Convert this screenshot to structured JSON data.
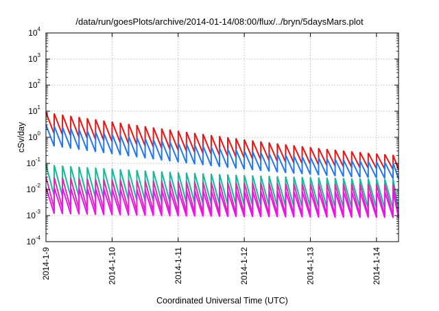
{
  "chart_data": {
    "type": "line",
    "title": "/data/run/goesPlots/archive/2014-01-14/08:00/flux/../bryn/5daysMars.plot",
    "xlabel": "Coordinated Universal Time (UTC)",
    "ylabel": "cSv/day",
    "yscale": "log",
    "ylim": [
      0.0001,
      10000
    ],
    "y_ticks": [
      {
        "base": "10",
        "exp": "-4",
        "value": 0.0001
      },
      {
        "base": "10",
        "exp": "-3",
        "value": 0.001
      },
      {
        "base": "10",
        "exp": "-2",
        "value": 0.01
      },
      {
        "base": "10",
        "exp": "-1",
        "value": 0.1
      },
      {
        "base": "10",
        "exp": "0",
        "value": 1
      },
      {
        "base": "10",
        "exp": "1",
        "value": 10
      },
      {
        "base": "10",
        "exp": "2",
        "value": 100
      },
      {
        "base": "10",
        "exp": "3",
        "value": 1000
      },
      {
        "base": "10",
        "exp": "4",
        "value": 10000
      }
    ],
    "x_domain": [
      "2014-01-09 00:00",
      "2014-01-14 08:00"
    ],
    "x_ticks": [
      {
        "label": "2014-1-9",
        "value": "2014-01-09"
      },
      {
        "label": "2014-1-10",
        "value": "2014-01-10"
      },
      {
        "label": "2014-1-11",
        "value": "2014-01-11"
      },
      {
        "label": "2014-1-12",
        "value": "2014-01-12"
      },
      {
        "label": "2014-1-13",
        "value": "2014-01-13"
      },
      {
        "label": "2014-1-14",
        "value": "2014-01-14"
      }
    ],
    "grid": true,
    "pattern": "sawtooth, approximately 8 cycles per day",
    "cycles_per_day": 8,
    "series": [
      {
        "color": "#ee1111",
        "peak_start": 9.0,
        "peak_end": 0.1,
        "trough_start": 1.5,
        "trough_end": 0.04,
        "decay_days": 1.2
      },
      {
        "color": "#2277ee",
        "peak_start": 3.0,
        "peak_end": 0.07,
        "trough_start": 0.5,
        "trough_end": 0.02,
        "decay_days": 1.2
      },
      {
        "color": "#11bb99",
        "peak_start": 0.09,
        "peak_end": 0.02,
        "trough_start": 0.006,
        "trough_end": 0.0015,
        "decay_days": 2.0
      },
      {
        "color": "#cc33aa",
        "peak_start": 0.03,
        "peak_end": 0.015,
        "trough_start": 0.002,
        "trough_end": 0.0009,
        "decay_days": 2.0
      },
      {
        "color": "#ee11ee",
        "peak_start": 0.012,
        "peak_end": 0.008,
        "trough_start": 0.0012,
        "trough_end": 0.0008,
        "decay_days": 2.0
      }
    ]
  }
}
